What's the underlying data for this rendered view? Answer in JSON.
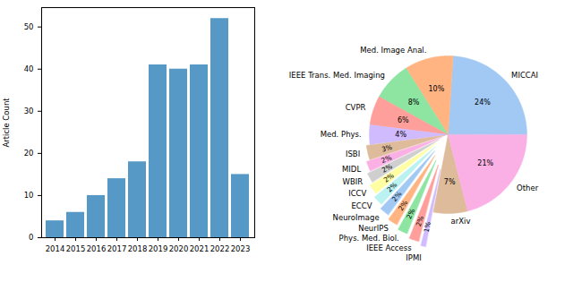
{
  "chart_data": [
    {
      "type": "bar",
      "categories": [
        "2014",
        "2015",
        "2016",
        "2017",
        "2018",
        "2019",
        "2020",
        "2021",
        "2022",
        "2023"
      ],
      "values": [
        4,
        6,
        10,
        14,
        18,
        41,
        40,
        41,
        52,
        15
      ],
      "color": "#5799c6",
      "ylabel": "Article Count",
      "ylim": [
        0,
        54.6
      ],
      "yticks": [
        0,
        10,
        20,
        30,
        40,
        50
      ],
      "grid": false
    },
    {
      "type": "pie",
      "categories": [
        "MICCAI",
        "Med. Image Anal.",
        "IEEE Trans. Med. Imaging",
        "CVPR",
        "Med. Phys.",
        "ISBI",
        "MIDL",
        "WBIR",
        "ICCV",
        "ECCV",
        "NeuroImage",
        "NeurIPS",
        "Phys. Med. Biol.",
        "IEEE Access",
        "IPMI",
        "arXiv",
        "Other"
      ],
      "values": [
        24,
        10,
        8,
        6,
        4,
        3,
        2,
        2,
        2,
        2,
        2,
        2,
        2,
        2,
        1,
        7,
        21
      ],
      "value_labels": [
        "24%",
        "10%",
        "8%",
        "6%",
        "4%",
        "3%",
        "2%",
        "2%",
        "2%",
        "2%",
        "2%",
        "2%",
        "2%",
        "2%",
        "1%",
        "7%",
        "21%"
      ],
      "colors": [
        "#a1c9f4",
        "#ffb482",
        "#8de5a1",
        "#ff9f9b",
        "#d0bbff",
        "#debb9b",
        "#fab0e4",
        "#cfcfcf",
        "#fffea3",
        "#b9f2f0",
        "#a1c9f4",
        "#ffb482",
        "#8de5a1",
        "#ff9f9b",
        "#d0bbff",
        "#debb9b",
        "#fab0e4"
      ],
      "data_labels": true
    }
  ]
}
